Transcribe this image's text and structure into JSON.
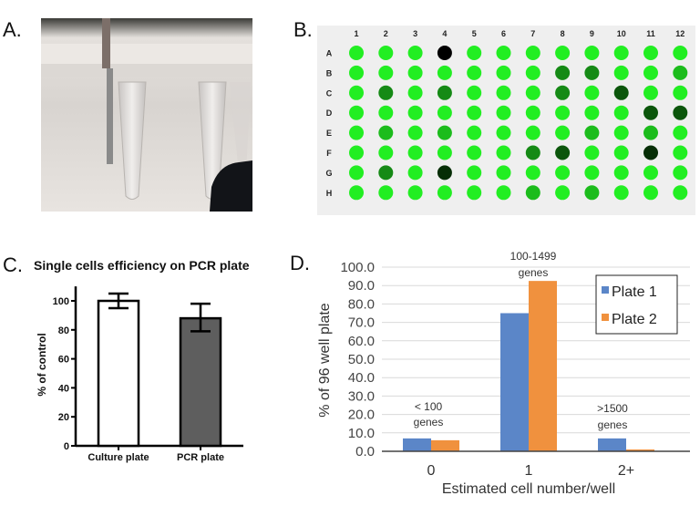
{
  "panels": {
    "a": {
      "label": "A."
    },
    "b": {
      "label": "B."
    },
    "c": {
      "label": "C."
    },
    "d": {
      "label": "D."
    }
  },
  "plate": {
    "columns": [
      "1",
      "2",
      "3",
      "4",
      "5",
      "6",
      "7",
      "8",
      "9",
      "10",
      "11",
      "12"
    ],
    "rows": [
      "A",
      "B",
      "C",
      "D",
      "E",
      "F",
      "G",
      "H"
    ],
    "shade_colors": [
      "#22ee22",
      "#1cbc1c",
      "#158a15",
      "#0b560b",
      "#062e06",
      "#000000"
    ],
    "background": "#efefef",
    "wells": [
      [
        0,
        0,
        0,
        5,
        0,
        0,
        0,
        0,
        0,
        0,
        0,
        0
      ],
      [
        0,
        0,
        0,
        0,
        0,
        0,
        0,
        2,
        2,
        0,
        0,
        1
      ],
      [
        0,
        2,
        0,
        2,
        0,
        0,
        0,
        2,
        0,
        3,
        0,
        0
      ],
      [
        0,
        0,
        0,
        0,
        0,
        0,
        0,
        0,
        0,
        0,
        3,
        3
      ],
      [
        0,
        1,
        0,
        1,
        0,
        0,
        0,
        0,
        1,
        0,
        1,
        0
      ],
      [
        0,
        0,
        0,
        0,
        0,
        0,
        2,
        3,
        0,
        0,
        4,
        0
      ],
      [
        0,
        2,
        0,
        4,
        0,
        0,
        0,
        0,
        0,
        0,
        0,
        0
      ],
      [
        0,
        0,
        0,
        0,
        0,
        0,
        1,
        0,
        1,
        0,
        0,
        0
      ]
    ]
  },
  "chart_data": [
    {
      "type": "bar",
      "title": "Single cells efficiency on PCR plate",
      "xlabel": "",
      "ylabel": "% of control",
      "categories": [
        "Culture plate",
        "PCR plate"
      ],
      "values": [
        100,
        88
      ],
      "error_low": [
        95,
        79
      ],
      "error_high": [
        105,
        98
      ],
      "bar_colors": [
        "#ffffff",
        "#5e5e5e"
      ],
      "ylim": [
        0,
        110
      ],
      "yticks": [
        "0",
        "20",
        "40",
        "60",
        "80",
        "100"
      ],
      "grid": false
    },
    {
      "type": "bar",
      "title": "",
      "xlabel": "Estimated cell number/well",
      "ylabel": "% of 96 well plate",
      "categories": [
        "0",
        "1",
        "2+"
      ],
      "series": [
        {
          "name": "Plate 1",
          "values": [
            7.0,
            75.0,
            7.0
          ],
          "color": "#5b86c8"
        },
        {
          "name": "Plate 2",
          "values": [
            6.0,
            92.5,
            1.0
          ],
          "color": "#f0913e"
        }
      ],
      "ylim": [
        0,
        100
      ],
      "yticks": [
        "0.0",
        "10.0",
        "20.0",
        "30.0",
        "40.0",
        "50.0",
        "60.0",
        "70.0",
        "80.0",
        "90.0",
        "100.0"
      ],
      "grid": true,
      "legend": "top-right",
      "annotations": [
        {
          "line1": "< 100",
          "line2": "genes",
          "category": "0"
        },
        {
          "line1": "100-1499",
          "line2": "genes",
          "category": "1"
        },
        {
          "line1": ">1500",
          "line2": "genes",
          "category": "2+"
        }
      ]
    }
  ]
}
